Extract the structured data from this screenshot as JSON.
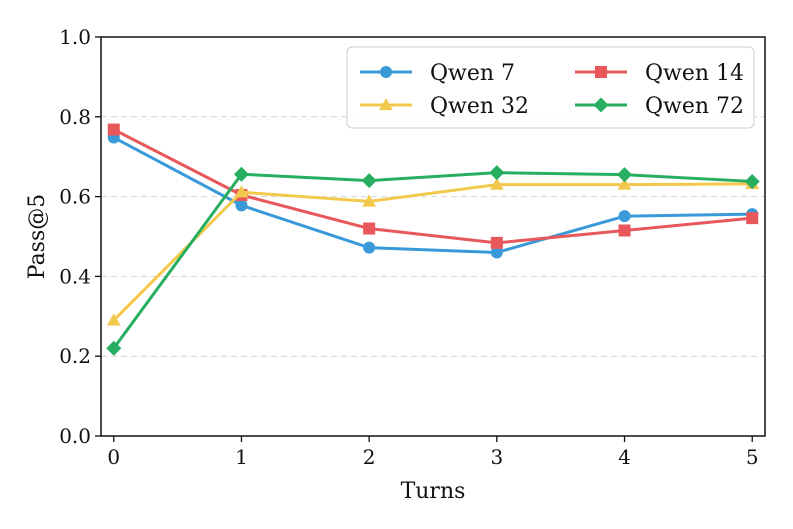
{
  "chart_data": {
    "type": "line",
    "xlabel": "Turns",
    "ylabel": "Pass@5",
    "x": [
      0,
      1,
      2,
      3,
      4,
      5
    ],
    "xticks": [
      "0",
      "1",
      "2",
      "3",
      "4",
      "5"
    ],
    "yticks": [
      "0.0",
      "0.2",
      "0.4",
      "0.6",
      "0.8",
      "1.0"
    ],
    "xlim": [
      -0.1,
      5.1
    ],
    "ylim": [
      0.0,
      1.0
    ],
    "grid": "horizontal-dashed",
    "legend_position": "top-right",
    "series": [
      {
        "name": "Qwen 7",
        "color": "#3a9ad9",
        "marker": "circle",
        "values": [
          0.748,
          0.578,
          0.472,
          0.46,
          0.551,
          0.556
        ]
      },
      {
        "name": "Qwen 14",
        "color": "#e8585a",
        "marker": "square",
        "values": [
          0.768,
          0.604,
          0.52,
          0.484,
          0.515,
          0.546
        ]
      },
      {
        "name": "Qwen 32",
        "color": "#f2c94c",
        "marker": "triangle",
        "values": [
          0.29,
          0.611,
          0.588,
          0.63,
          0.63,
          0.632
        ]
      },
      {
        "name": "Qwen 72",
        "color": "#27ae60",
        "marker": "diamond",
        "values": [
          0.22,
          0.656,
          0.64,
          0.66,
          0.655,
          0.638
        ]
      }
    ]
  }
}
